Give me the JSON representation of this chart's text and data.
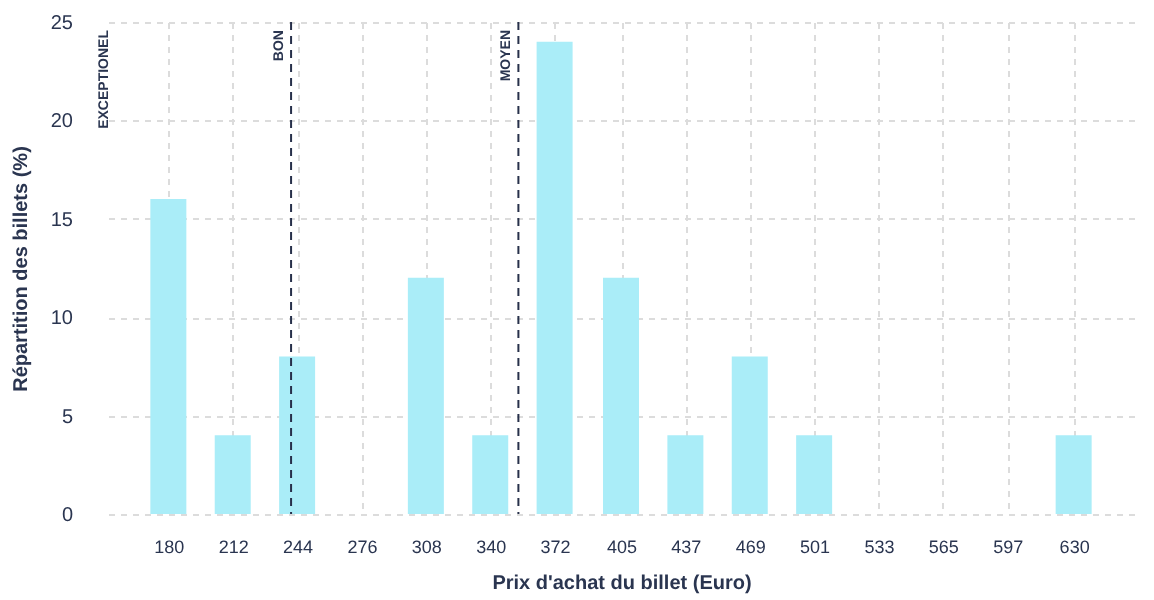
{
  "chart_data": {
    "type": "bar",
    "xlabel": "Prix d'achat du billet (Euro)",
    "ylabel": "Répartition des billets (%)",
    "x": [
      180,
      212,
      244,
      276,
      308,
      340,
      372,
      405,
      437,
      469,
      501,
      533,
      565,
      597,
      630
    ],
    "values": [
      16,
      4,
      8,
      0,
      12,
      4,
      24,
      12,
      4,
      8,
      4,
      0,
      0,
      0,
      4
    ],
    "color": "#aaedf8",
    "xlim": [
      150,
      660
    ],
    "xticks": [
      180,
      212,
      244,
      276,
      308,
      340,
      372,
      405,
      437,
      469,
      501,
      533,
      565,
      597,
      630
    ],
    "ylim": [
      0,
      25
    ],
    "yticks": [
      0,
      5,
      10,
      15,
      20,
      25
    ],
    "grid": true,
    "ref_lines": [
      {
        "axis": "x",
        "value": 241,
        "label": "BON",
        "color": "#27304a",
        "line_style": "dashed"
      },
      {
        "axis": "x",
        "value": 354,
        "label": "MOYEN",
        "color": "#27304a",
        "line_style": "dashed"
      }
    ],
    "annotations": [
      "EXCEPTIONEL"
    ]
  }
}
